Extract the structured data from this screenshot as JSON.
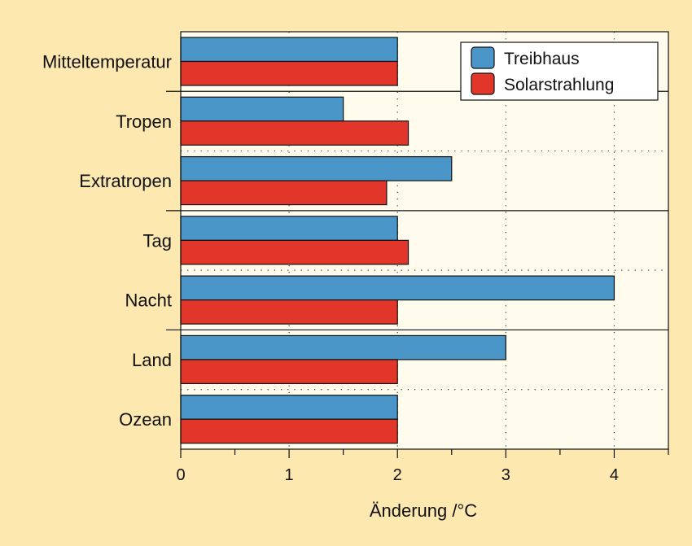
{
  "chart_data": {
    "type": "bar",
    "orientation": "horizontal",
    "categories": [
      "Mitteltemperatur",
      "Tropen",
      "Extratropen",
      "Tag",
      "Nacht",
      "Land",
      "Ozean"
    ],
    "series": [
      {
        "name": "Treibhaus",
        "values": [
          2,
          1.5,
          2.5,
          2,
          4,
          3,
          2
        ],
        "color": "#4a96c8"
      },
      {
        "name": "Solarstrahlung",
        "values": [
          2,
          2.1,
          1.9,
          2.1,
          2,
          2,
          2
        ],
        "color": "#e3362b"
      }
    ],
    "xlabel": "Änderung /°C",
    "ylabel": "",
    "xlim": [
      0,
      4.5
    ],
    "xticks": [
      "0",
      "1",
      "2",
      "3",
      "4"
    ],
    "grid": "vertical dotted",
    "legend": "top-right",
    "group_separators": "solid after Mitteltemperatur, Extratropen, Nacht; dotted after Tropen, Tag, Land",
    "colors": {
      "background": "#fde8b0",
      "plot_background": "#fffcee",
      "axis": "#111111"
    }
  }
}
